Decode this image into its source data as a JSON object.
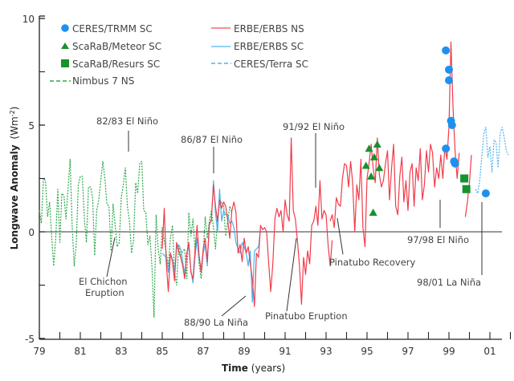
{
  "chart_data": {
    "type": "line",
    "title": "",
    "xlabel": "Time",
    "xlabel_unit": "(years)",
    "ylabel": "Longwave Anomaly",
    "ylabel_unit": "(Wm-2)",
    "xlim": [
      1979,
      2002
    ],
    "ylim": [
      -5,
      10
    ],
    "x_tick_labels": [
      "79",
      "81",
      "83",
      "85",
      "87",
      "89",
      "91",
      "93",
      "95",
      "97",
      "99",
      "01"
    ],
    "x_tick_values": [
      1979,
      1981,
      1983,
      1985,
      1987,
      1989,
      1991,
      1993,
      1995,
      1997,
      1999,
      2001
    ],
    "y_tick_labels": [
      "10",
      "5",
      "0",
      "-5"
    ],
    "y_tick_values": [
      10,
      5,
      0,
      -5
    ],
    "legend_position": "top",
    "legend": [
      {
        "name": "CERES/TRMM SC",
        "style": "circle-marker",
        "color": "#1e90ee"
      },
      {
        "name": "ScaRaB/Meteor SC",
        "style": "triangle-marker",
        "color": "#16922e"
      },
      {
        "name": "ScaRaB/Resurs SC",
        "style": "square-marker",
        "color": "#16922e"
      },
      {
        "name": "Nimbus 7 NS",
        "style": "dashed-line",
        "color": "#2aa84a"
      },
      {
        "name": "ERBE/ERBS NS",
        "style": "solid-line",
        "color": "#f03c4a"
      },
      {
        "name": "ERBE/ERBS SC",
        "style": "solid-line",
        "color": "#4ab4ee"
      },
      {
        "name": "CERES/Terra SC",
        "style": "dashed-line",
        "color": "#4ab4ee"
      }
    ],
    "series": [
      {
        "name": "Nimbus 7 NS",
        "color": "#2aa84a",
        "dashed": true,
        "x": [
          1979.0,
          1979.1,
          1979.2,
          1979.3,
          1979.4,
          1979.5,
          1979.6,
          1979.7,
          1979.8,
          1979.9,
          1980.0,
          1980.1,
          1980.2,
          1980.3,
          1980.4,
          1980.5,
          1980.6,
          1980.7,
          1980.8,
          1980.9,
          1981.0,
          1981.1,
          1981.2,
          1981.3,
          1981.4,
          1981.5,
          1981.6,
          1981.7,
          1981.8,
          1981.9,
          1982.0,
          1982.1,
          1982.2,
          1982.3,
          1982.4,
          1982.5,
          1982.6,
          1982.7,
          1982.8,
          1982.9,
          1983.0,
          1983.1,
          1983.2,
          1983.3,
          1983.4,
          1983.5,
          1983.6,
          1983.7,
          1983.8,
          1983.9,
          1984.0,
          1984.1,
          1984.2,
          1984.3,
          1984.4,
          1984.5,
          1984.6,
          1984.7,
          1984.8,
          1984.9,
          1985.0,
          1985.1,
          1985.2,
          1985.3,
          1985.4,
          1985.5,
          1985.6,
          1985.7,
          1985.8,
          1985.9,
          1986.0,
          1986.1,
          1986.2,
          1986.3,
          1986.4,
          1986.5,
          1986.6,
          1986.7,
          1986.8,
          1986.9,
          1987.0,
          1987.1,
          1987.2,
          1987.3,
          1987.4,
          1987.5,
          1987.6,
          1987.7,
          1987.8,
          1987.9,
          1988.0,
          1988.1,
          1988.2,
          1988.3,
          1988.4
        ],
        "values": [
          1.0,
          0.4,
          2.5,
          2.4,
          0.7,
          1.4,
          -0.2,
          -1.6,
          -0.3,
          2.0,
          -0.5,
          1.8,
          1.7,
          0.6,
          2.0,
          3.4,
          0.3,
          -1.6,
          -0.6,
          2.2,
          2.6,
          2.6,
          0.6,
          -0.5,
          2.1,
          2.1,
          1.6,
          -1.1,
          1.0,
          1.5,
          2.4,
          3.3,
          2.5,
          1.3,
          1.2,
          -0.9,
          1.3,
          0.3,
          -0.7,
          -0.5,
          1.6,
          2.2,
          3.0,
          1.2,
          0.5,
          -1.0,
          -0.4,
          2.3,
          1.8,
          3.2,
          3.3,
          1.0,
          0.9,
          -0.6,
          -0.2,
          -1.7,
          -4.0,
          0.8,
          -0.8,
          -1.5,
          0.2,
          -0.4,
          -1.0,
          -1.6,
          -0.3,
          0.3,
          -1.9,
          -2.5,
          -0.6,
          -1.2,
          -0.9,
          -0.8,
          -2.2,
          0.9,
          -0.2,
          0.6,
          -0.9,
          -0.3,
          -1.5,
          -2.2,
          -1.0,
          0.7,
          -0.3,
          0.5,
          1.0,
          0.2,
          -0.8,
          0.6,
          1.3,
          1.4,
          1.2,
          -0.2,
          0.5,
          1.2,
          0.9
        ]
      },
      {
        "name": "ERBE/ERBS SC",
        "color": "#4ab4ee",
        "dashed": false,
        "x": [
          1985.0,
          1985.1,
          1985.2,
          1985.3,
          1985.4,
          1985.5,
          1985.6,
          1985.7,
          1985.8,
          1985.9,
          1986.0,
          1986.1,
          1986.2,
          1986.3,
          1986.4,
          1986.5,
          1986.6,
          1986.7,
          1986.8,
          1986.9,
          1987.0,
          1987.1,
          1987.2,
          1987.3,
          1987.4,
          1987.5,
          1987.6,
          1987.7,
          1987.8,
          1987.9,
          1988.0,
          1988.1,
          1988.2,
          1988.3,
          1988.4,
          1988.5,
          1988.6,
          1988.7,
          1988.8,
          1988.9,
          1989.0,
          1989.1,
          1989.2,
          1989.3,
          1989.4,
          1989.5,
          1989.6,
          1989.7,
          1989.8
        ],
        "values": [
          -1.0,
          -1.1,
          -1.2,
          -1.9,
          -1.0,
          -1.3,
          -1.9,
          -0.8,
          -0.6,
          -0.8,
          -1.4,
          -2.0,
          -1.0,
          -0.7,
          -1.8,
          -2.4,
          -1.2,
          -0.3,
          -1.3,
          -1.7,
          -1.0,
          -0.6,
          -1.6,
          0.4,
          0.5,
          2.4,
          0.9,
          0.0,
          2.0,
          0.5,
          1.0,
          0.8,
          0.8,
          0.4,
          0.5,
          0.2,
          -0.5,
          -0.8,
          -1.0,
          -0.5,
          -0.7,
          -1.0,
          -1.6,
          -0.9,
          -3.3,
          -0.9,
          -0.8,
          -0.7,
          0.1
        ]
      },
      {
        "name": "ERBE/ERBS NS",
        "color": "#f03c4a",
        "dashed": false,
        "x": [
          1985.0,
          1985.1,
          1985.2,
          1985.3,
          1985.4,
          1985.5,
          1985.6,
          1985.7,
          1985.8,
          1985.9,
          1986.0,
          1986.1,
          1986.2,
          1986.3,
          1986.4,
          1986.5,
          1986.6,
          1986.7,
          1986.8,
          1986.9,
          1987.0,
          1987.1,
          1987.2,
          1987.3,
          1987.4,
          1987.5,
          1987.6,
          1987.7,
          1987.8,
          1987.9,
          1988.0,
          1988.1,
          1988.2,
          1988.3,
          1988.4,
          1988.5,
          1988.6,
          1988.7,
          1988.8,
          1988.9,
          1989.0,
          1989.1,
          1989.2,
          1989.3,
          1989.4,
          1989.5,
          1989.6,
          1989.7,
          1989.8,
          1989.9,
          1990.0,
          1990.1,
          1990.2,
          1990.3,
          1990.4,
          1990.5,
          1990.6,
          1990.7,
          1990.8,
          1990.9,
          1991.0,
          1991.1,
          1991.2,
          1991.3,
          1991.4,
          1991.5,
          1991.6,
          1991.7,
          1991.8,
          1991.9,
          1992.0,
          1992.1,
          1992.2,
          1992.3,
          1992.4,
          1992.5,
          1992.6,
          1992.7,
          1992.8,
          1992.9,
          1993.0,
          1993.1,
          1993.2,
          1993.3
        ],
        "values": [
          -0.8,
          1.1,
          -1.5,
          -2.8,
          -1.0,
          -1.4,
          -2.3,
          -0.5,
          -0.9,
          -1.2,
          -1.6,
          -2.2,
          -1.0,
          -0.5,
          -1.9,
          -2.2,
          -0.9,
          0.3,
          -1.1,
          -1.9,
          -0.8,
          -0.3,
          -1.4,
          0.3,
          0.6,
          2.2,
          1.2,
          0.5,
          1.5,
          1.1,
          1.4,
          1.2,
          0.5,
          -0.3,
          1.0,
          1.4,
          0.9,
          -1.0,
          -0.6,
          -1.4,
          -0.3,
          -1.0,
          -0.7,
          -1.5,
          -2.2,
          -3.5,
          -1.0,
          -1.2,
          0.3,
          0.1,
          0.2,
          0.0,
          -1.5,
          -2.8,
          -1.5,
          0.6,
          1.1,
          0.7,
          1.0,
          0.0,
          1.5,
          0.8,
          0.5,
          4.4,
          1.0,
          0.6,
          -0.4,
          -1.6,
          -3.4,
          -1.2,
          -2.0,
          -0.9,
          -1.5,
          0.3,
          0.5,
          1.2,
          0.3,
          2.4,
          0.6,
          1.0,
          0.8,
          -0.6,
          -1.6,
          -0.4
        ]
      },
      {
        "name": "ERBE/ERBS NS (1993-1996)",
        "color": "#f03c4a",
        "dashed": false,
        "x": [
          1993.2,
          1993.3,
          1993.4,
          1993.5,
          1993.6,
          1993.7,
          1993.8,
          1993.9,
          1994.0,
          1994.1,
          1994.2,
          1994.3,
          1994.4,
          1994.5,
          1994.6,
          1994.7,
          1994.8,
          1994.9,
          1995.0,
          1995.1,
          1995.2,
          1995.3,
          1995.4,
          1995.5,
          1995.6,
          1995.7,
          1995.8,
          1995.9,
          1996.0,
          1996.1,
          1996.2,
          1996.3,
          1996.4,
          1996.5,
          1996.6,
          1996.7,
          1996.8,
          1996.9,
          1997.0,
          1997.1,
          1997.2,
          1997.3,
          1997.4,
          1997.5,
          1997.6,
          1997.7,
          1997.8,
          1997.9,
          1998.0,
          1998.1,
          1998.2,
          1998.3,
          1998.4,
          1998.5,
          1998.6,
          1998.7,
          1998.8,
          1998.9,
          1999.0,
          1999.1,
          1999.2,
          1999.3,
          1999.4,
          1999.5
        ],
        "values": [
          0.5,
          0.8,
          0.2,
          1.6,
          1.3,
          1.2,
          2.5,
          3.2,
          3.1,
          2.1,
          3.3,
          2.3,
          0.0,
          2.2,
          1.5,
          3.4,
          0.2,
          -0.7,
          2.5,
          3.2,
          4.1,
          3.0,
          2.3,
          4.4,
          2.7,
          2.1,
          2.4,
          3.2,
          3.8,
          1.5,
          3.0,
          4.1,
          1.2,
          0.8,
          2.6,
          3.5,
          1.4,
          2.4,
          1.0,
          2.8,
          3.2,
          1.2,
          3.0,
          2.4,
          3.9,
          1.5,
          2.2,
          3.8,
          2.8,
          4.1,
          3.7,
          2.1,
          3.0,
          2.5,
          3.6,
          2.5,
          4.0,
          3.4,
          4.9,
          8.9,
          5.8,
          3.8,
          2.5,
          3.7
        ]
      },
      {
        "name": "ERBE/ERBS NS (1999-2000)",
        "color": "#f03c4a",
        "dashed": false,
        "x": [
          1999.8,
          1999.9,
          2000.0,
          2000.1
        ],
        "values": [
          0.7,
          1.4,
          2.3,
          3.6
        ]
      },
      {
        "name": "CERES/Terra SC",
        "color": "#4ab4ee",
        "dashed": true,
        "x": [
          2000.3,
          2000.4,
          2000.5,
          2000.6,
          2000.7,
          2000.8,
          2000.9,
          2001.0,
          2001.1,
          2001.2,
          2001.3,
          2001.4,
          2001.5,
          2001.6,
          2001.7,
          2001.8,
          2001.9
        ],
        "values": [
          2.0,
          1.8,
          2.4,
          3.5,
          4.6,
          4.9,
          3.5,
          4.0,
          2.8,
          4.3,
          4.2,
          3.0,
          4.6,
          4.9,
          4.4,
          3.8,
          3.6
        ]
      }
    ],
    "markers": [
      {
        "name": "CERES/TRMM SC",
        "shape": "circle",
        "color": "#1e90ee",
        "points": [
          [
            1998.85,
            8.5
          ],
          [
            1999.0,
            7.6
          ],
          [
            1999.0,
            7.1
          ],
          [
            1999.1,
            5.2
          ],
          [
            1999.15,
            5.0
          ],
          [
            1998.85,
            3.9
          ],
          [
            1999.25,
            3.3
          ],
          [
            1999.3,
            3.2
          ],
          [
            2000.8,
            1.8
          ]
        ]
      },
      {
        "name": "ScaRaB/Meteor SC",
        "shape": "triangle",
        "color": "#16922e",
        "points": [
          [
            1995.1,
            3.9
          ],
          [
            1995.5,
            4.1
          ],
          [
            1995.35,
            3.5
          ],
          [
            1994.95,
            3.1
          ],
          [
            1995.2,
            2.6
          ],
          [
            1995.6,
            3.0
          ],
          [
            1995.3,
            0.9
          ]
        ]
      },
      {
        "name": "ScaRaB/Resurs SC",
        "shape": "square",
        "color": "#16922e",
        "points": [
          [
            1999.75,
            2.5
          ],
          [
            1999.85,
            2.0
          ]
        ]
      }
    ],
    "annotations": [
      {
        "text": "82/83 El Niño",
        "x": 1983.5,
        "y": 3.5
      },
      {
        "text": "86/87 El Niño",
        "x": 1987.6,
        "y": 2.7
      },
      {
        "text": "91/92 El Niño",
        "x": 1992.7,
        "y": 2.0
      },
      {
        "text": "El Chichon",
        "text2": "Eruption",
        "x": 1982.9,
        "y": -0.5
      },
      {
        "text": "88/90 La Niña",
        "x": 1989.5,
        "y": -2.8
      },
      {
        "text": "Pinatubo Eruption",
        "x": 1991.6,
        "y": -0.2
      },
      {
        "text": "Pinatubo Recovery",
        "x": 1993.6,
        "y": 1.3
      },
      {
        "text": "97/98 El Niño",
        "x": 1998.95,
        "y": 1.3
      },
      {
        "text": "98/01 La Niña",
        "x": 2000.85,
        "y": 1.0
      }
    ]
  }
}
